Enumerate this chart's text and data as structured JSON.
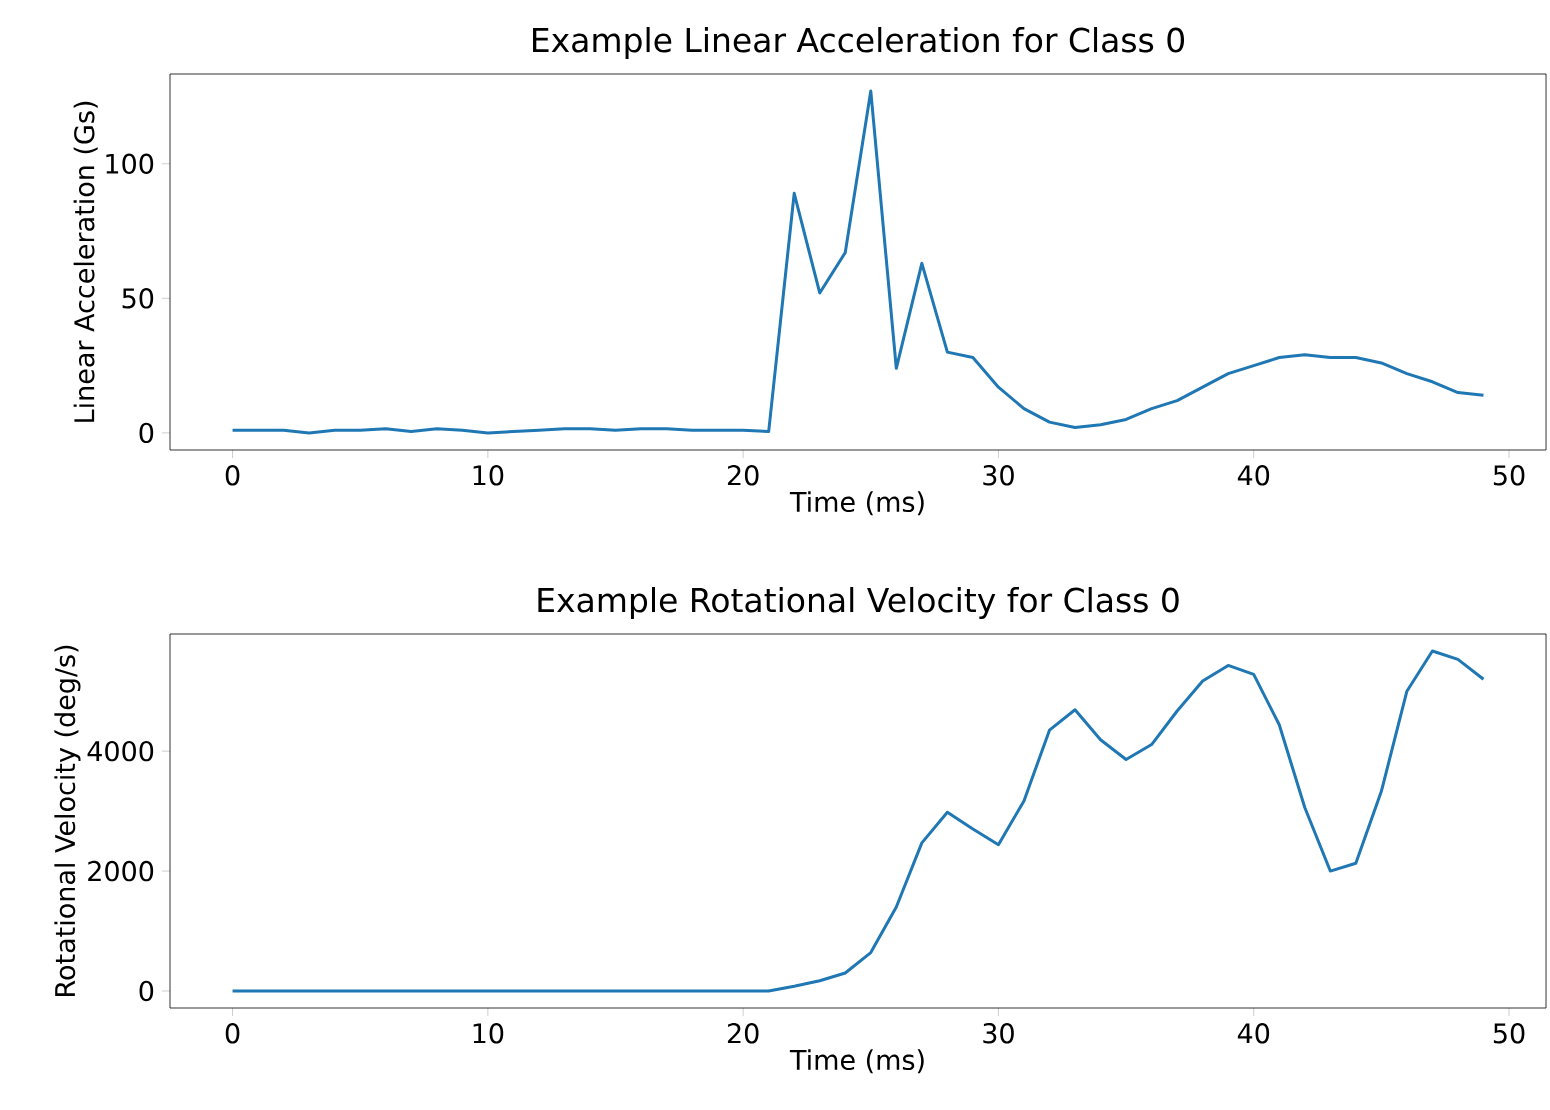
{
  "chart_data": [
    {
      "type": "line",
      "title": "Example Linear Acceleration for Class 0",
      "xlabel": "Time (ms)",
      "ylabel": "Linear Acceleration (Gs)",
      "color": "#1f77b4",
      "x": [
        0,
        1,
        2,
        3,
        4,
        5,
        6,
        7,
        8,
        9,
        10,
        11,
        12,
        13,
        14,
        15,
        16,
        17,
        18,
        19,
        20,
        21,
        22,
        23,
        24,
        25,
        26,
        27,
        28,
        29,
        30,
        31,
        32,
        33,
        34,
        35,
        36,
        37,
        38,
        39,
        40,
        41,
        42,
        43,
        44,
        45,
        46,
        47,
        48,
        49
      ],
      "values": [
        1,
        1,
        1,
        0,
        1,
        1,
        1.5,
        0.5,
        1.5,
        1,
        0,
        0.5,
        1,
        1.5,
        1.5,
        1,
        1.5,
        1.5,
        1,
        1,
        1,
        0.5,
        89,
        52,
        67,
        127,
        24,
        63,
        30,
        28,
        17,
        9,
        4,
        2,
        3,
        5,
        9,
        12,
        17,
        22,
        25,
        28,
        29,
        28,
        28,
        26,
        22,
        19,
        15,
        14
      ],
      "xlim": [
        -2.45,
        51.45
      ],
      "ylim": [
        -6.35,
        133.35
      ],
      "xticks": [
        0,
        10,
        20,
        30,
        40,
        50
      ],
      "yticks": [
        0,
        50,
        100
      ]
    },
    {
      "type": "line",
      "title": "Example Rotational Velocity for Class 0",
      "xlabel": "Time (ms)",
      "ylabel": "Rotational Velocity (deg/s)",
      "color": "#1f77b4",
      "x": [
        0,
        1,
        2,
        3,
        4,
        5,
        6,
        7,
        8,
        9,
        10,
        11,
        12,
        13,
        14,
        15,
        16,
        17,
        18,
        19,
        20,
        21,
        22,
        23,
        24,
        25,
        26,
        27,
        28,
        29,
        30,
        31,
        32,
        33,
        34,
        35,
        36,
        37,
        38,
        39,
        40,
        41,
        42,
        43,
        44,
        45,
        46,
        47,
        48,
        49
      ],
      "values": [
        0,
        0,
        0,
        0,
        0,
        0,
        0,
        0,
        0,
        0,
        0,
        0,
        0,
        0,
        0,
        0,
        0,
        0,
        0,
        0,
        0,
        0,
        80,
        170,
        300,
        640,
        1400,
        2470,
        2980,
        2700,
        2440,
        3170,
        4350,
        4690,
        4190,
        3860,
        4110,
        4670,
        5170,
        5430,
        5280,
        4440,
        3060,
        2000,
        2130,
        3330,
        5000,
        5670,
        5530,
        5200
      ],
      "xlim": [
        -2.45,
        51.45
      ],
      "ylim": [
        -284,
        5954
      ],
      "xticks": [
        0,
        10,
        20,
        30,
        40,
        50
      ],
      "yticks": [
        0,
        2000,
        4000
      ]
    }
  ]
}
